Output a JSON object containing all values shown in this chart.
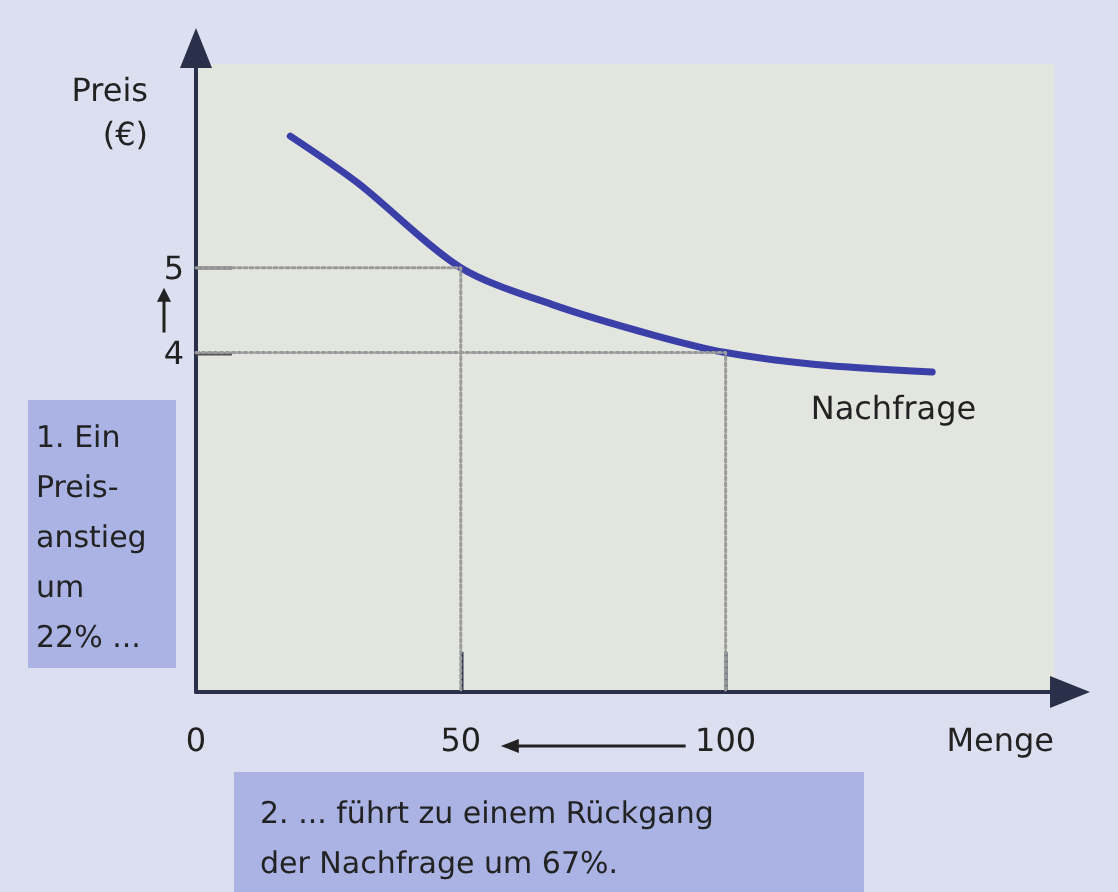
{
  "chart_data": {
    "type": "line",
    "xlabel": "Menge",
    "ylabel": "Preis\n(€)",
    "xlim": [
      0,
      162
    ],
    "ylim": [
      0,
      7.4
    ],
    "xticks": [
      0,
      50,
      100
    ],
    "yticks": [
      4,
      5
    ],
    "marker": "none",
    "line_style": "solid",
    "grid": false,
    "series": [
      {
        "name": "Nachfrage",
        "color": "#3b3fa8",
        "x": [
          17.8,
          30.5,
          50,
          68,
          86.7,
          100,
          117,
          139
        ],
        "values": [
          6.55,
          6.0,
          5,
          4.55,
          4.2,
          4,
          3.86,
          3.77
        ]
      },
      {
        "color": "#9a9a9a",
        "line_style": "dotted",
        "x": [
          0,
          50,
          50
        ],
        "values": [
          5,
          5,
          0
        ]
      },
      {
        "color": "#9a9a9a",
        "line_style": "dotted",
        "x": [
          0,
          100,
          100
        ],
        "values": [
          4,
          4,
          0
        ]
      }
    ],
    "annotations": [
      "1. Ein\nPreis-\nanstieg\num\n22% ...",
      "2. ... führt zu einem Rückgang\nder Nachfrage um 67%."
    ]
  }
}
